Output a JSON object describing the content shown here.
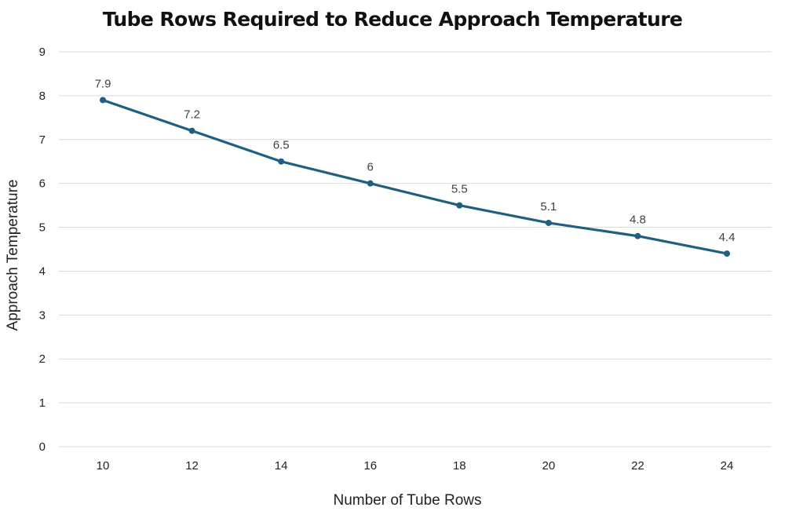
{
  "chart_data": {
    "type": "line",
    "title": "Tube Rows Required to Reduce Approach Temperature",
    "xlabel": "Number of Tube Rows",
    "ylabel": "Approach Temperature",
    "categories": [
      "10",
      "12",
      "14",
      "16",
      "18",
      "20",
      "22",
      "24"
    ],
    "series": [
      {
        "values": [
          7.9,
          7.2,
          6.5,
          6,
          5.5,
          5.1,
          4.8,
          4.4
        ],
        "data_labels": [
          "7.9",
          "7.2",
          "6.5",
          "6",
          "5.5",
          "5.1",
          "4.8",
          "4.4"
        ]
      }
    ],
    "ylim": [
      0,
      9
    ],
    "yticks": [
      "0",
      "1",
      "2",
      "3",
      "4",
      "5",
      "6",
      "7",
      "8",
      "9"
    ],
    "grid": true,
    "legend": "none",
    "colors": {
      "line": "#1f5f82",
      "grid": "#d9d9d9"
    }
  }
}
